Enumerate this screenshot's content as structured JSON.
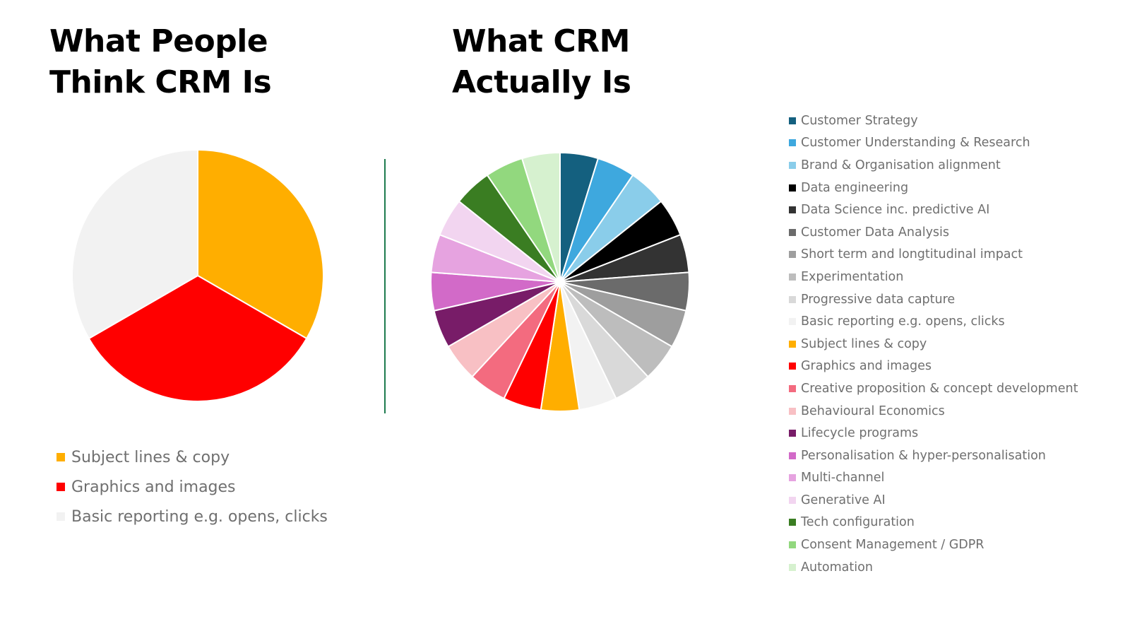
{
  "chart_data": [
    {
      "type": "pie",
      "title": "What People Think CRM Is",
      "title_lines": [
        "What People",
        "Think CRM Is"
      ],
      "legend_placement": "bottom",
      "labels": [
        "Subject lines & copy",
        "Graphics and images",
        "Basic reporting e.g. opens, clicks"
      ],
      "values": [
        1,
        1,
        1
      ],
      "colors": [
        "#FFAE00",
        "#FF0000",
        "#F2F2F2"
      ]
    },
    {
      "type": "pie",
      "title": "What CRM Actually Is",
      "title_lines": [
        "What CRM",
        "Actually Is"
      ],
      "legend_placement": "right",
      "labels": [
        "Customer Strategy",
        "Customer Understanding & Research",
        "Brand & Organisation alignment",
        "Data engineering",
        "Data Science inc. predictive AI",
        "Customer Data Analysis",
        "Short term and longtitudinal impact",
        "Experimentation",
        "Progressive data capture",
        "Basic reporting e.g. opens, clicks",
        "Subject lines & copy",
        "Graphics and images",
        "Creative proposition & concept development",
        "Behavioural Economics",
        "Lifecycle programs",
        "Personalisation & hyper-personalisation",
        "Multi-channel",
        "Generative AI",
        "Tech configuration",
        "Consent Management / GDPR",
        "Automation"
      ],
      "values": [
        1,
        1,
        1,
        1,
        1,
        1,
        1,
        1,
        1,
        1,
        1,
        1,
        1,
        1,
        1,
        1,
        1,
        1,
        1,
        1,
        1
      ],
      "colors": [
        "#14607F",
        "#3EA8DE",
        "#8ACDEA",
        "#000000",
        "#333333",
        "#6B6B6B",
        "#9E9E9E",
        "#BDBDBD",
        "#D9D9D9",
        "#F2F2F2",
        "#FFAE00",
        "#FF0000",
        "#F36B7F",
        "#F8C0C4",
        "#781C68",
        "#D26AC8",
        "#E6A3E0",
        "#F2D5F0",
        "#3A7D22",
        "#92D87E",
        "#D6F1CF"
      ]
    }
  ]
}
